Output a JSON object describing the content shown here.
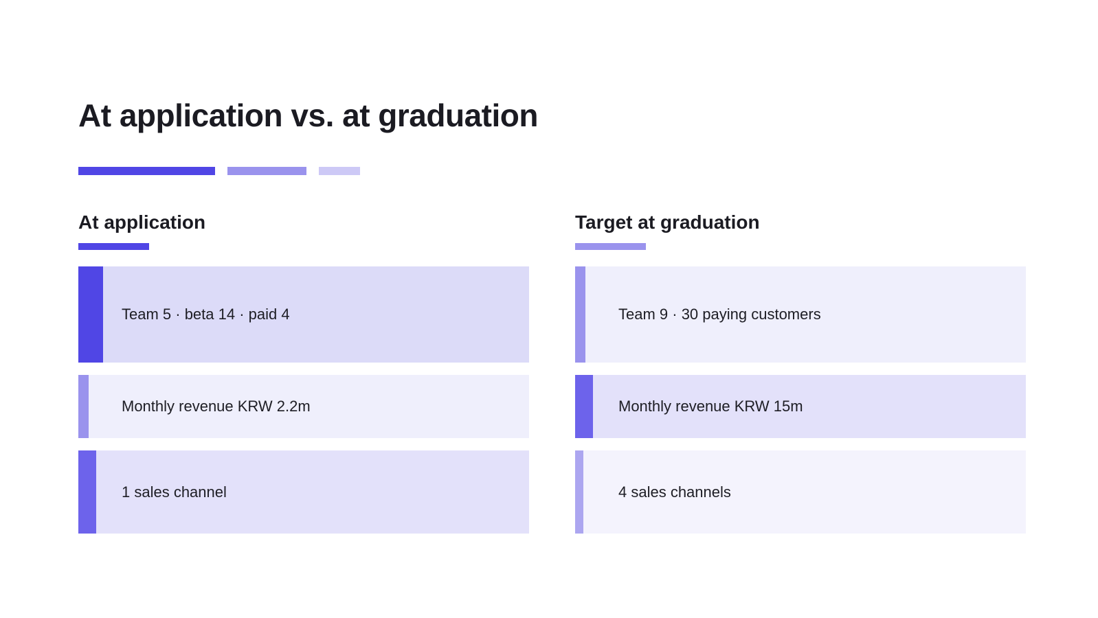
{
  "title": "At application vs. at graduation",
  "colors": {
    "accent_primary": "#5046e5",
    "accent_secondary": "#9a93ed",
    "accent_tertiary": "#cdc9f6"
  },
  "columns": [
    {
      "heading": "At application",
      "underline_color": "#5046e5",
      "cards": [
        {
          "text": "Team 5 · beta 14 · paid 4",
          "bar_color": "#5046e5",
          "bg_color": "#dcdbf8"
        },
        {
          "text": "Monthly revenue KRW 2.2m",
          "bar_color": "#9a93ed",
          "bg_color": "#efeffc"
        },
        {
          "text": "1 sales channel",
          "bar_color": "#6d63eb",
          "bg_color": "#e3e1fa"
        }
      ]
    },
    {
      "heading": "Target at graduation",
      "underline_color": "#9a93ed",
      "cards": [
        {
          "text": "Team 9 · 30 paying customers",
          "bar_color": "#9a93ed",
          "bg_color": "#efeffc"
        },
        {
          "text": "Monthly revenue KRW 15m",
          "bar_color": "#6d63eb",
          "bg_color": "#e3e1fa"
        },
        {
          "text": "4 sales channels",
          "bar_color": "#aca6f0",
          "bg_color": "#f4f3fd"
        }
      ]
    }
  ]
}
